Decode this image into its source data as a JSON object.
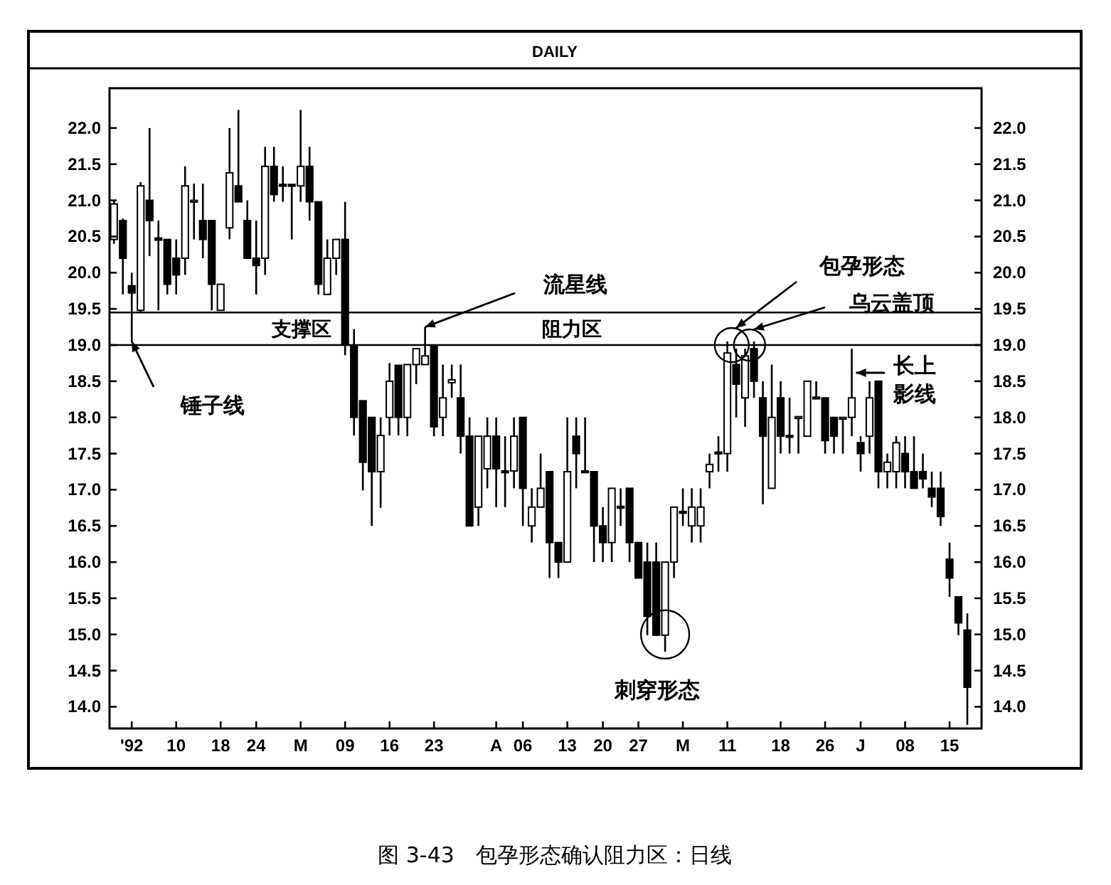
{
  "chart_data": {
    "type": "candlestick",
    "title": "DAILY",
    "categories": [
      null,
      null,
      "'92",
      null,
      null,
      null,
      null,
      "10",
      null,
      null,
      null,
      null,
      "18",
      null,
      null,
      null,
      "24",
      null,
      null,
      null,
      null,
      "M",
      null,
      null,
      null,
      null,
      "09",
      null,
      null,
      null,
      null,
      "16",
      null,
      null,
      null,
      null,
      "23",
      null,
      null,
      null,
      null,
      null,
      null,
      "A",
      null,
      null,
      "06",
      null,
      null,
      null,
      null,
      "13",
      null,
      null,
      null,
      "20",
      null,
      null,
      null,
      "27",
      null,
      null,
      null,
      null,
      "M",
      null,
      null,
      null,
      null,
      "11",
      null,
      null,
      null,
      null,
      null,
      "18",
      null,
      null,
      null,
      null,
      "26",
      null,
      null,
      null,
      "J",
      null,
      null,
      null,
      null,
      "08",
      null,
      null,
      null,
      null,
      "15",
      null,
      null
    ],
    "ohlc": [
      [
        20.46,
        21.0,
        20.4,
        20.95
      ],
      [
        20.72,
        20.75,
        19.7,
        20.2
      ],
      [
        19.82,
        20.0,
        19.05,
        19.72
      ],
      [
        19.48,
        21.25,
        19.45,
        21.2
      ],
      [
        21.0,
        22.0,
        20.23,
        20.72
      ],
      [
        20.48,
        20.72,
        19.48,
        20.45
      ],
      [
        20.46,
        20.46,
        19.7,
        19.84
      ],
      [
        20.2,
        20.46,
        19.7,
        19.97
      ],
      [
        20.2,
        21.47,
        19.97,
        21.2
      ],
      [
        20.98,
        21.23,
        20.46,
        21.0
      ],
      [
        20.72,
        21.23,
        20.2,
        20.46
      ],
      [
        20.72,
        20.72,
        19.48,
        19.84
      ],
      [
        19.48,
        19.84,
        19.48,
        19.84
      ],
      [
        20.62,
        22.0,
        20.46,
        21.38
      ],
      [
        21.2,
        22.25,
        20.98,
        20.98
      ],
      [
        20.72,
        21.0,
        20.2,
        20.2
      ],
      [
        20.2,
        20.72,
        19.7,
        20.1
      ],
      [
        20.2,
        21.74,
        19.97,
        21.47
      ],
      [
        21.47,
        21.74,
        20.98,
        21.08
      ],
      [
        21.22,
        21.47,
        20.98,
        21.2
      ],
      [
        21.22,
        21.22,
        20.46,
        21.2
      ],
      [
        21.2,
        22.25,
        20.98,
        21.47
      ],
      [
        21.47,
        21.74,
        20.72,
        20.98
      ],
      [
        20.98,
        20.98,
        19.7,
        19.84
      ],
      [
        19.7,
        20.46,
        19.7,
        20.2
      ],
      [
        20.2,
        20.46,
        19.97,
        20.46
      ],
      [
        20.46,
        20.98,
        18.86,
        19.0
      ],
      [
        19.0,
        19.22,
        17.75,
        18.0
      ],
      [
        18.23,
        18.23,
        16.99,
        17.38
      ],
      [
        18.0,
        18.0,
        16.5,
        17.25
      ],
      [
        17.25,
        18.0,
        16.75,
        17.75
      ],
      [
        18.0,
        18.75,
        17.75,
        18.5
      ],
      [
        18.72,
        18.72,
        17.75,
        18.0
      ],
      [
        18.0,
        18.73,
        17.74,
        18.73
      ],
      [
        18.73,
        18.95,
        18.46,
        18.95
      ],
      [
        18.73,
        19.25,
        18.73,
        18.85
      ],
      [
        19.0,
        19.0,
        17.74,
        17.87
      ],
      [
        18.0,
        18.73,
        17.74,
        18.27
      ],
      [
        18.48,
        18.73,
        18.27,
        18.52
      ],
      [
        18.27,
        18.73,
        17.5,
        17.74
      ],
      [
        17.74,
        18.0,
        16.5,
        16.5
      ],
      [
        16.76,
        17.74,
        16.5,
        17.74
      ],
      [
        17.29,
        18.0,
        17.02,
        17.74
      ],
      [
        17.74,
        18.0,
        16.76,
        17.29
      ],
      [
        17.26,
        17.74,
        16.76,
        17.25
      ],
      [
        17.26,
        18.0,
        17.02,
        17.74
      ],
      [
        18.0,
        18.0,
        16.5,
        17.02
      ],
      [
        16.5,
        17.02,
        16.27,
        16.76
      ],
      [
        16.76,
        17.5,
        16.76,
        17.02
      ],
      [
        17.25,
        17.25,
        15.78,
        16.27
      ],
      [
        16.27,
        16.27,
        15.78,
        16.0
      ],
      [
        16.0,
        18.0,
        16.0,
        17.25
      ],
      [
        17.74,
        18.0,
        17.02,
        17.5
      ],
      [
        17.26,
        18.0,
        17.25,
        17.25
      ],
      [
        17.25,
        17.25,
        16.0,
        16.5
      ],
      [
        16.5,
        16.76,
        16.0,
        16.27
      ],
      [
        16.27,
        17.02,
        16.0,
        17.02
      ],
      [
        16.77,
        17.02,
        16.5,
        16.76
      ],
      [
        17.02,
        17.02,
        16.0,
        16.27
      ],
      [
        16.27,
        16.27,
        15.78,
        15.78
      ],
      [
        16.0,
        16.27,
        14.99,
        15.25
      ],
      [
        16.0,
        16.27,
        14.99,
        14.99
      ],
      [
        14.99,
        16.0,
        14.76,
        16.0
      ],
      [
        16.0,
        16.76,
        15.78,
        16.76
      ],
      [
        16.7,
        17.02,
        16.5,
        16.69
      ],
      [
        16.5,
        17.02,
        16.27,
        16.76
      ],
      [
        16.5,
        17.02,
        16.27,
        16.76
      ],
      [
        17.25,
        17.5,
        17.02,
        17.35
      ],
      [
        17.52,
        17.74,
        17.25,
        17.5
      ],
      [
        17.5,
        19.05,
        17.25,
        18.89
      ],
      [
        18.73,
        18.95,
        18.0,
        18.46
      ],
      [
        18.27,
        18.95,
        17.87,
        18.85
      ],
      [
        18.95,
        19.05,
        18.27,
        18.5
      ],
      [
        18.27,
        18.5,
        16.8,
        17.74
      ],
      [
        17.02,
        18.73,
        17.02,
        18.0
      ],
      [
        18.27,
        18.5,
        17.5,
        17.74
      ],
      [
        17.75,
        18.27,
        17.5,
        17.74
      ],
      [
        18.0,
        18.01,
        17.5,
        18.01
      ],
      [
        17.74,
        18.5,
        17.74,
        18.5
      ],
      [
        18.28,
        18.5,
        18.27,
        18.27
      ],
      [
        18.27,
        18.27,
        17.5,
        17.68
      ],
      [
        18.0,
        18.0,
        17.5,
        17.74
      ],
      [
        17.99,
        18.0,
        17.5,
        18.0
      ],
      [
        18.0,
        18.95,
        17.74,
        18.27
      ],
      [
        17.65,
        17.74,
        17.25,
        17.5
      ],
      [
        17.74,
        18.5,
        17.5,
        18.27
      ],
      [
        18.5,
        18.5,
        17.02,
        17.25
      ],
      [
        17.25,
        17.5,
        17.02,
        17.38
      ],
      [
        17.25,
        17.74,
        17.02,
        17.65
      ],
      [
        17.5,
        17.74,
        17.02,
        17.25
      ],
      [
        17.25,
        17.74,
        17.02,
        17.02
      ],
      [
        17.25,
        17.5,
        17.02,
        17.15
      ],
      [
        17.02,
        17.25,
        16.76,
        16.9
      ],
      [
        17.02,
        17.25,
        16.5,
        16.63
      ],
      [
        16.04,
        16.27,
        15.52,
        15.78
      ],
      [
        15.52,
        15.52,
        14.99,
        15.16
      ],
      [
        15.06,
        15.29,
        13.75,
        14.27
      ]
    ],
    "ylim": [
      13.7,
      22.55
    ],
    "yticks": [
      {
        "value": 14,
        "label": "14.0"
      },
      {
        "value": 14.5,
        "label": "14.5"
      },
      {
        "value": 15,
        "label": "15.0"
      },
      {
        "value": 15.5,
        "label": "15.5"
      },
      {
        "value": 16,
        "label": "16.0"
      },
      {
        "value": 16.5,
        "label": "16.5"
      },
      {
        "value": 17,
        "label": "17.0"
      },
      {
        "value": 17.5,
        "label": "17.5"
      },
      {
        "value": 18,
        "label": "18.0"
      },
      {
        "value": 18.5,
        "label": "18.5"
      },
      {
        "value": 19,
        "label": "19.0"
      },
      {
        "value": 19.5,
        "label": "19.5"
      },
      {
        "value": 20,
        "label": "20.0"
      },
      {
        "value": 20.5,
        "label": "20.5"
      },
      {
        "value": 21,
        "label": "21.0"
      },
      {
        "value": 21.5,
        "label": "21.5"
      },
      {
        "value": 22,
        "label": "22.0"
      }
    ],
    "y2lim": [
      13.7,
      22.55
    ],
    "y2ticks": [
      {
        "value": 14,
        "label": "14.0"
      },
      {
        "value": 14.5,
        "label": "14.5"
      },
      {
        "value": 15,
        "label": "15.0"
      },
      {
        "value": 15.5,
        "label": "15.5"
      },
      {
        "value": 16,
        "label": "16.0"
      },
      {
        "value": 16.5,
        "label": "16.5"
      },
      {
        "value": 17,
        "label": "17.0"
      },
      {
        "value": 17.5,
        "label": "17.5"
      },
      {
        "value": 18,
        "label": "18.0"
      },
      {
        "value": 18.5,
        "label": "18.5"
      },
      {
        "value": 19,
        "label": "19.0"
      },
      {
        "value": 19.5,
        "label": "19.5"
      },
      {
        "value": 20,
        "label": "20.0"
      },
      {
        "value": 20.5,
        "label": "20.5"
      },
      {
        "value": 21,
        "label": "21.0"
      },
      {
        "value": 21.5,
        "label": "21.5"
      },
      {
        "value": 22,
        "label": "22.0"
      }
    ],
    "ref_lines": [
      {
        "axis": "y",
        "value": 19.45
      },
      {
        "axis": "y",
        "value": 19.0
      }
    ],
    "annotations": [
      "支撑区",
      "阻力区",
      "锤子线",
      "流星线",
      "包孕形态",
      "乌云盖顶",
      "长上影线",
      "刺穿形态",
      "图 3-43　包孕形态确认阻力区：日线"
    ],
    "tick_labels": "xy"
  }
}
